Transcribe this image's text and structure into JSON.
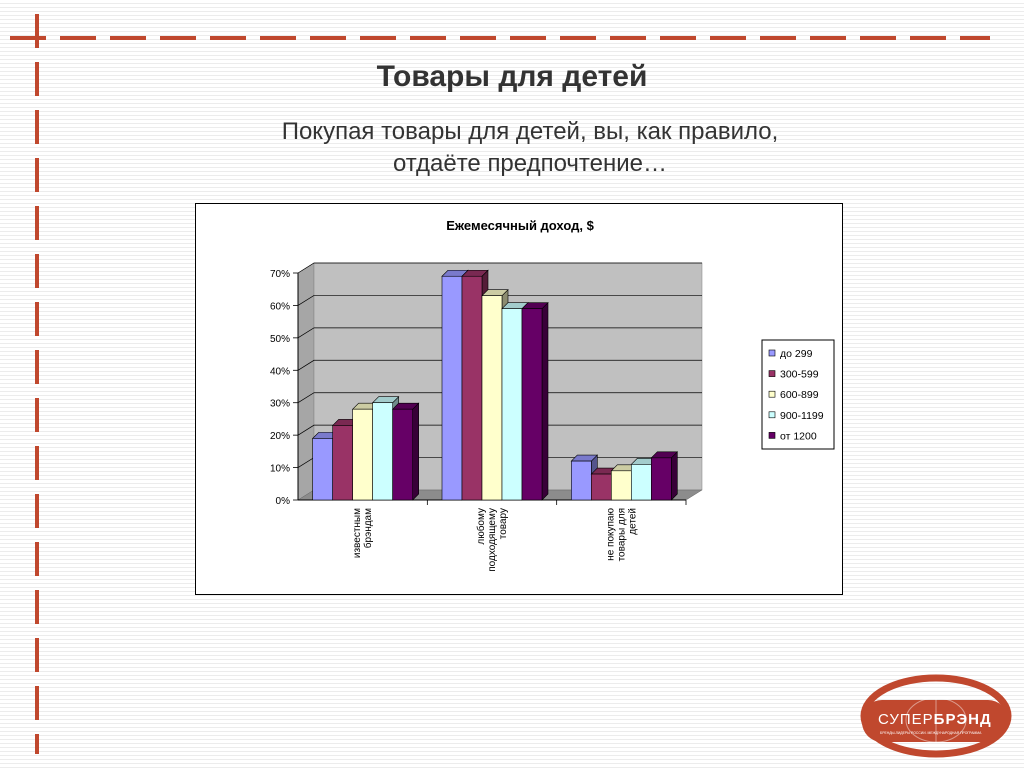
{
  "slide": {
    "title": "Товары для детей",
    "subtitle_line1": "Покупая товары для детей, вы, как правило,",
    "subtitle_line2": "отдаёте предпочтение…"
  },
  "logo": {
    "brand_text_1": "СУПЕР",
    "brand_text_2": "БРЭНД",
    "tagline": "БРЕНДЫ-ЛИДЕРЫ РОССИИ. МЕЖДУНАРОДНАЯ ПРОГРАММА"
  },
  "colors": {
    "accent": "#c0482e",
    "plot_bg": "#c0c0c0"
  },
  "chart_data": {
    "type": "bar",
    "title": "Ежемесячный доход, $",
    "categories": [
      [
        "известным",
        "брэндам"
      ],
      [
        "любому",
        "подходящему",
        "товару"
      ],
      [
        "не покупаю",
        "товары для",
        "детей"
      ]
    ],
    "series": [
      {
        "name": "до 299",
        "color": "#9999ff",
        "values": [
          19,
          69,
          12
        ]
      },
      {
        "name": "300-599",
        "color": "#993366",
        "values": [
          23,
          69,
          8
        ]
      },
      {
        "name": "600-899",
        "color": "#ffffcc",
        "values": [
          28,
          63,
          9
        ]
      },
      {
        "name": "900-1199",
        "color": "#ccffff",
        "values": [
          30,
          59,
          11
        ]
      },
      {
        "name": "от 1200",
        "color": "#660066",
        "values": [
          28,
          59,
          13
        ]
      }
    ],
    "y_ticks": [
      "0%",
      "10%",
      "20%",
      "30%",
      "40%",
      "50%",
      "60%",
      "70%"
    ],
    "ylim": [
      0,
      70
    ],
    "grid": true,
    "legend_position": "right"
  }
}
